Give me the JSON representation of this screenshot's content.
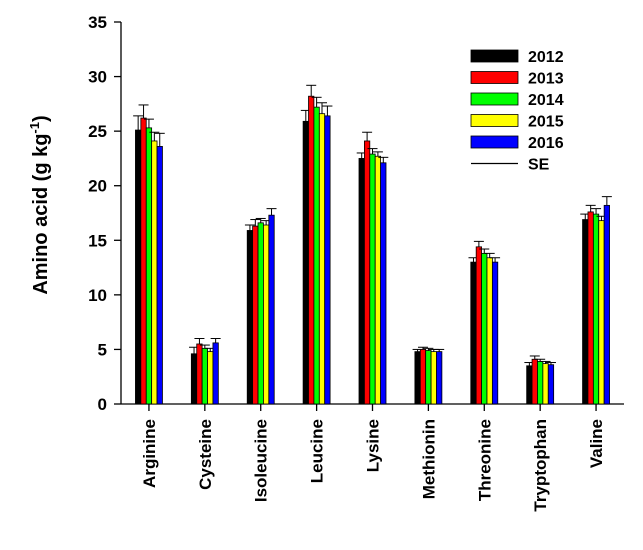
{
  "chart_data": {
    "type": "bar",
    "title": "",
    "xlabel": "",
    "ylabel": "Amino acid (g kg",
    "ylabel_sup": "-1",
    "ylabel_end": ")",
    "ylim": [
      0,
      35
    ],
    "yticks": [
      0,
      5,
      10,
      15,
      20,
      25,
      30,
      35
    ],
    "categories": [
      "Arginine",
      "Cysteine",
      "Isoleucine",
      "Leucine",
      "Lysine",
      "Methionin",
      "Threonine",
      "Tryptophan",
      "Valine"
    ],
    "legend_position": "top-right",
    "grid": false,
    "series": [
      {
        "name": "2012",
        "color": "#000000",
        "values": [
          25.1,
          4.6,
          15.9,
          25.9,
          22.5,
          4.8,
          13.0,
          3.5,
          16.9
        ],
        "se": [
          1.3,
          0.6,
          0.5,
          1.0,
          0.5,
          0.2,
          0.4,
          0.3,
          0.5
        ]
      },
      {
        "name": "2013",
        "color": "#ff0000",
        "values": [
          26.2,
          5.5,
          16.3,
          28.2,
          24.1,
          5.0,
          14.4,
          4.1,
          17.6
        ],
        "se": [
          1.2,
          0.5,
          0.6,
          1.0,
          0.8,
          0.2,
          0.5,
          0.3,
          0.6
        ]
      },
      {
        "name": "2014",
        "color": "#00ff00",
        "values": [
          25.3,
          5.1,
          16.6,
          27.2,
          22.9,
          4.9,
          13.8,
          3.9,
          17.4
        ],
        "se": [
          0.8,
          0.3,
          0.4,
          0.9,
          0.5,
          0.2,
          0.4,
          0.2,
          0.5
        ]
      },
      {
        "name": "2015",
        "color": "#ffff00",
        "values": [
          24.1,
          4.8,
          16.4,
          26.6,
          22.7,
          4.8,
          13.4,
          3.7,
          16.8
        ],
        "se": [
          0.8,
          0.3,
          0.4,
          1.0,
          0.4,
          0.2,
          0.4,
          0.2,
          0.4
        ]
      },
      {
        "name": "2016",
        "color": "#0000ff",
        "values": [
          23.6,
          5.6,
          17.3,
          26.4,
          22.1,
          4.8,
          13.0,
          3.6,
          18.2
        ],
        "se": [
          1.2,
          0.4,
          0.6,
          0.9,
          0.5,
          0.2,
          0.4,
          0.2,
          0.8
        ]
      }
    ],
    "error_legend_label": "SE"
  }
}
